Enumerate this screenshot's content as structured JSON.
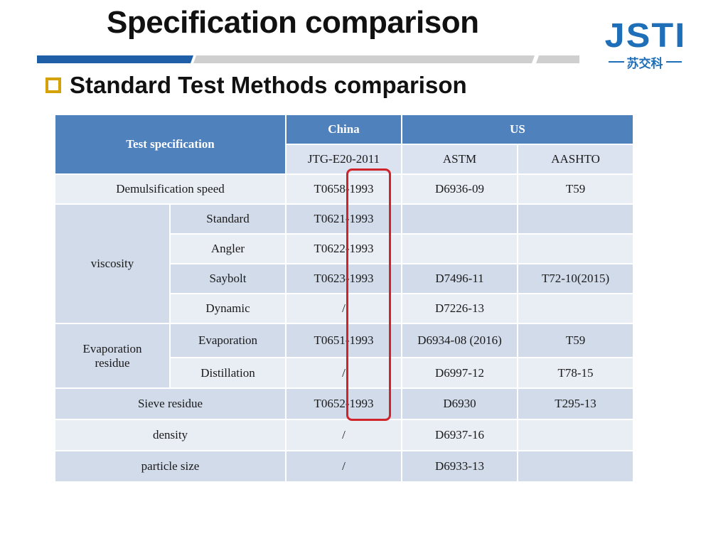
{
  "slide": {
    "title": "Specification comparison",
    "subtitle": "Standard Test Methods comparison"
  },
  "logo": {
    "letters": "JSTI",
    "sub": "苏交科",
    "color": "#1f6fb8"
  },
  "colors": {
    "header_blue": "#4f81bd",
    "row_light": "#e9edf4",
    "row_dark": "#d2dbea",
    "highlight_red": "#d0242b",
    "bullet_gold": "#d4a106"
  },
  "table": {
    "header": {
      "test_spec": "Test specification",
      "china": "China",
      "us": "US",
      "china_std": "JTG-E20-2011",
      "astm": "ASTM",
      "aashto": "AASHTO"
    },
    "rows": {
      "demuls": {
        "label": "Demulsification speed",
        "china": "T0658-1993",
        "astm": "D6936-09",
        "aashto": "T59"
      },
      "viscosity": {
        "group": "viscosity",
        "standard": {
          "label": "Standard",
          "china": "T0621-1993",
          "astm": "",
          "aashto": ""
        },
        "angler": {
          "label": "Angler",
          "china": "T0622-1993",
          "astm": "",
          "aashto": ""
        },
        "saybolt": {
          "label": "Saybolt",
          "china": "T0623-1993",
          "astm": "D7496-11",
          "aashto": "T72-10(2015)"
        },
        "dynamic": {
          "label": "Dynamic",
          "china": "/",
          "astm": "D7226-13",
          "aashto": ""
        }
      },
      "evap": {
        "group_line1": "Evaporation",
        "group_line2": "residue",
        "evaporation": {
          "label": "Evaporation",
          "china": "T0651-1993",
          "astm": "D6934-08 (2016)",
          "aashto": "T59"
        },
        "distillation": {
          "label": "Distillation",
          "china": "/",
          "astm": "D6997-12",
          "aashto": "T78-15"
        }
      },
      "sieve": {
        "label": "Sieve residue",
        "china": "T0652-1993",
        "astm": "D6930",
        "aashto": "T295-13"
      },
      "density": {
        "label": "density",
        "china": "/",
        "astm": "D6937-16",
        "aashto": ""
      },
      "particle": {
        "label": "particle size",
        "china": "/",
        "astm": "D6933-13",
        "aashto": ""
      }
    }
  }
}
